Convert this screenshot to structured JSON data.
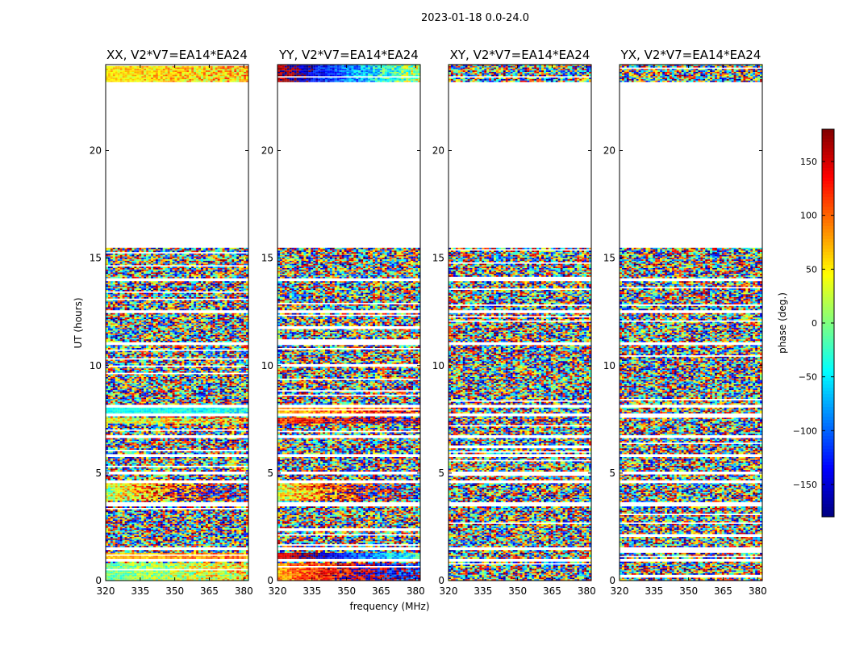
{
  "chart_data": {
    "type": "heatmap",
    "suptitle": "2023-01-18 0.0-24.0",
    "xlabel": "frequency (MHz)",
    "ylabel": "UT (hours)",
    "xlim": [
      320,
      382
    ],
    "ylim": [
      0,
      24
    ],
    "x_ticks": [
      320,
      335,
      350,
      365,
      380
    ],
    "y_ticks": [
      0,
      5,
      10,
      15,
      20
    ],
    "colorbar": {
      "label": "phase (deg.)",
      "range": [
        -180,
        180
      ],
      "ticks": [
        150,
        100,
        50,
        0,
        -50,
        -100,
        -150
      ],
      "tick_labels": [
        "150",
        "100",
        "50",
        "0",
        "−50",
        "−100",
        "−150"
      ],
      "colormap": "jet"
    },
    "data_coverage_hours": [
      [
        0,
        15.5
      ],
      [
        23.2,
        24
      ]
    ],
    "flagged_rows_hours": [
      0.95,
      1.5,
      3.5,
      3.6,
      4.6,
      5.0,
      5.8,
      6.7,
      7.7,
      8.1,
      11.0,
      12.5,
      14.0
    ],
    "panels": [
      {
        "title": "XX, V2*V7=EA14*EA24",
        "coherent_bands": [
          {
            "t0": 23.2,
            "t1": 24,
            "phase": 55,
            "drift": 10,
            "noise": 25
          },
          {
            "t0": 7.8,
            "t1": 8.1,
            "phase": -40,
            "drift": 0,
            "noise": 15
          },
          {
            "t0": 7.3,
            "t1": 7.6,
            "phase": 30,
            "drift": 40,
            "noise": 40
          },
          {
            "t0": 3.7,
            "t1": 4.6,
            "phase": 20,
            "drift": 200,
            "noise": 60
          },
          {
            "t0": 1.0,
            "t1": 1.3,
            "phase": 65,
            "drift": 30,
            "noise": 20
          },
          {
            "t0": 0.0,
            "t1": 0.8,
            "phase": -10,
            "drift": 60,
            "noise": 30
          }
        ]
      },
      {
        "title": "YY, V2*V7=EA14*EA24",
        "coherent_bands": [
          {
            "t0": 23.2,
            "t1": 24,
            "phase": 160,
            "drift": 220,
            "noise": 25
          },
          {
            "t0": 7.8,
            "t1": 8.1,
            "phase": 70,
            "drift": 60,
            "noise": 30
          },
          {
            "t0": 7.3,
            "t1": 7.6,
            "phase": 120,
            "drift": 60,
            "noise": 40
          },
          {
            "t0": 3.7,
            "t1": 4.6,
            "phase": 40,
            "drift": 200,
            "noise": 60
          },
          {
            "t0": 1.0,
            "t1": 1.3,
            "phase": 140,
            "drift": 200,
            "noise": 20
          },
          {
            "t0": 0.0,
            "t1": 0.8,
            "phase": 80,
            "drift": 150,
            "noise": 35
          }
        ]
      },
      {
        "title": "XY, V2*V7=EA14*EA24",
        "coherent_bands": []
      },
      {
        "title": "YX, V2*V7=EA14*EA24",
        "coherent_bands": []
      }
    ]
  }
}
